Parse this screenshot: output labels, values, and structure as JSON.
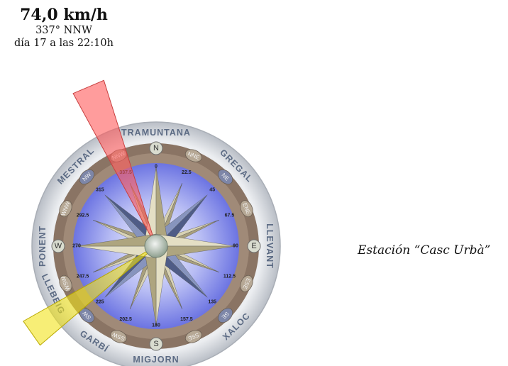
{
  "reading": {
    "speed": "74,0 km/h",
    "direction": "337° NNW",
    "timestamp": "día 17 a las 22:10h"
  },
  "wind": {
    "max_direction_deg": 337,
    "current_direction_deg": 235
  },
  "station": {
    "name": "Estación “Casc Urbà”"
  },
  "compass": {
    "wind_names": [
      "TRAMUNTANA",
      "GREGAL",
      "LLEVANT",
      "XALOC",
      "MIGJORN",
      "GARBÍ",
      "LLEBEIG",
      "PONENT",
      "MESTRAL"
    ],
    "points": [
      "N",
      "NNE",
      "NE",
      "ENE",
      "E",
      "ESE",
      "SE",
      "SSE",
      "S",
      "SSW",
      "SW",
      "WSW",
      "W",
      "WNW",
      "NW",
      "NNW"
    ],
    "degree_labels": [
      "0",
      "22.5",
      "45",
      "67.5",
      "90",
      "112.5",
      "135",
      "157.5",
      "180",
      "202.5",
      "225",
      "247.5",
      "270",
      "292.5",
      "315",
      "337.5"
    ]
  },
  "colors": {
    "max_sector": "#ff5a5a",
    "current_sector": "#f2e21a",
    "ring": "#8a7464",
    "outer_ring": "#d6d9de",
    "sky": "#7e86ea",
    "star_blue": "#5f6e9a",
    "star_gold": "#c6bf9c"
  }
}
